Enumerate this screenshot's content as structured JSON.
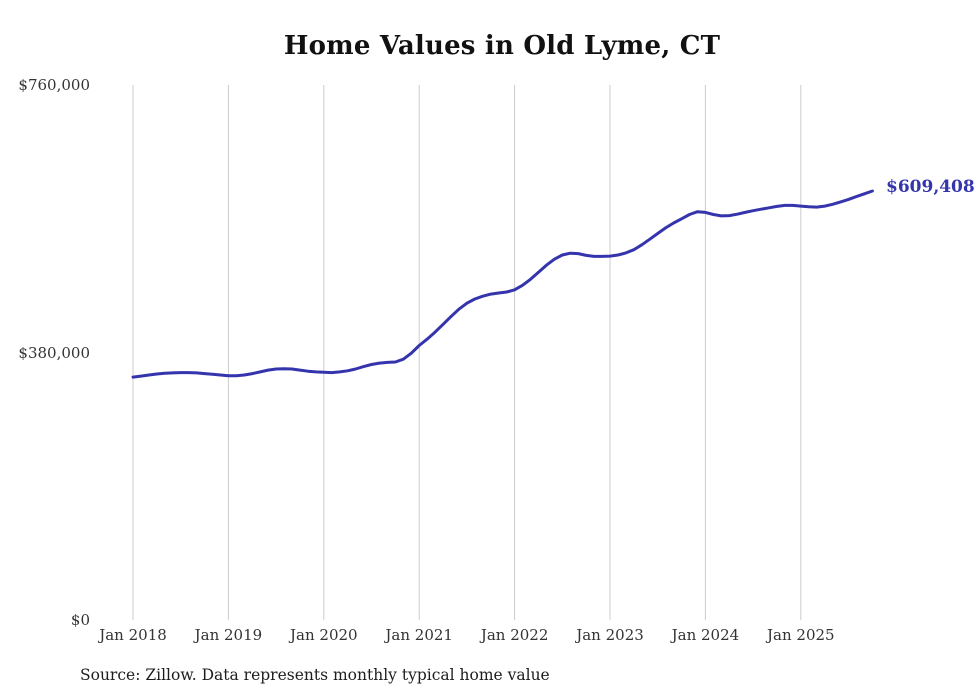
{
  "chart_data": {
    "type": "line",
    "title": "Home Values in Old Lyme, CT",
    "xlabel": "",
    "ylabel": "",
    "ylim": [
      0,
      760000
    ],
    "grid": "vertical-only",
    "legend": "none",
    "x_tick_labels": [
      "Jan 2018",
      "Jan 2019",
      "Jan 2020",
      "Jan 2021",
      "Jan 2022",
      "Jan 2023",
      "Jan 2024",
      "Jan 2025"
    ],
    "y_ticks": [
      {
        "label": "$760,000",
        "value": 760000
      },
      {
        "label": "$380,000",
        "value": 380000
      },
      {
        "label": "$0",
        "value": 0
      }
    ],
    "series": [
      {
        "name": "Monthly typical home value",
        "color": "#3434ad",
        "frequency": "monthly",
        "start_month": "2018-01",
        "end_month": "2025-10",
        "values": [
          345000,
          346500,
          348000,
          349500,
          350500,
          351000,
          351500,
          351500,
          351000,
          350000,
          349000,
          348000,
          347000,
          347000,
          348000,
          350000,
          352500,
          355000,
          356500,
          357000,
          356500,
          355000,
          353500,
          352500,
          352000,
          351500,
          352500,
          354000,
          356500,
          360000,
          363000,
          365000,
          366000,
          366500,
          370500,
          379000,
          390000,
          399000,
          409000,
          420000,
          431000,
          441500,
          450000,
          456000,
          460000,
          463000,
          464500,
          466000,
          469000,
          475500,
          484000,
          494000,
          504000,
          512500,
          518500,
          521000,
          520500,
          518000,
          516500,
          516500,
          517000,
          518500,
          521500,
          526000,
          533000,
          541000,
          549000,
          557000,
          564000,
          570000,
          576000,
          580000,
          579000,
          576000,
          574000,
          574500,
          576500,
          579000,
          581500,
          583500,
          585500,
          587500,
          589000,
          589000,
          588000,
          587000,
          586500,
          588000,
          590500,
          594000,
          597500,
          601500,
          605500,
          609408
        ]
      }
    ],
    "end_label": "$609,408",
    "source_note": "Source: Zillow. Data represents monthly typical home value",
    "colors": {
      "line": "#3434ad",
      "grid": "#cccccc",
      "axis_text": "#333333",
      "title_text": "#111111",
      "source_text": "#1d1d1d",
      "background": "#ffffff"
    }
  }
}
